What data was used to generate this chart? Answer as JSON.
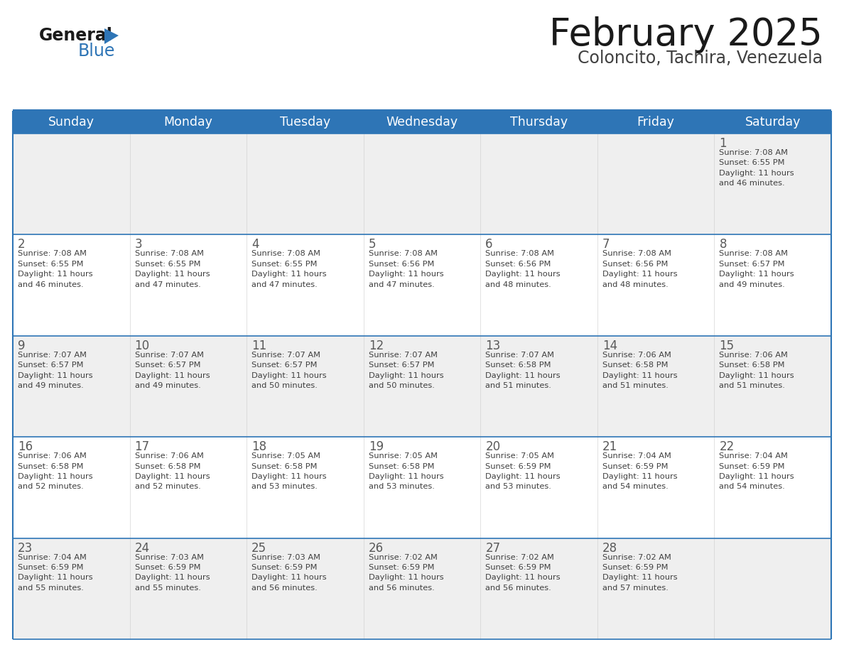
{
  "title": "February 2025",
  "subtitle": "Coloncito, Tachira, Venezuela",
  "header_bg": "#2E75B6",
  "header_text": "#FFFFFF",
  "cell_bg_odd": "#EFEFEF",
  "cell_bg_even": "#FFFFFF",
  "border_color": "#2E75B6",
  "sep_color": "#2E75B6",
  "day_headers": [
    "Sunday",
    "Monday",
    "Tuesday",
    "Wednesday",
    "Thursday",
    "Friday",
    "Saturday"
  ],
  "title_color": "#1a1a1a",
  "subtitle_color": "#404040",
  "day_num_color": "#595959",
  "cell_text_color": "#404040",
  "logo_black": "#1a1a1a",
  "logo_blue": "#2E75B6",
  "weeks": [
    [
      {
        "day": null,
        "info": null
      },
      {
        "day": null,
        "info": null
      },
      {
        "day": null,
        "info": null
      },
      {
        "day": null,
        "info": null
      },
      {
        "day": null,
        "info": null
      },
      {
        "day": null,
        "info": null
      },
      {
        "day": 1,
        "info": "Sunrise: 7:08 AM\nSunset: 6:55 PM\nDaylight: 11 hours\nand 46 minutes."
      }
    ],
    [
      {
        "day": 2,
        "info": "Sunrise: 7:08 AM\nSunset: 6:55 PM\nDaylight: 11 hours\nand 46 minutes."
      },
      {
        "day": 3,
        "info": "Sunrise: 7:08 AM\nSunset: 6:55 PM\nDaylight: 11 hours\nand 47 minutes."
      },
      {
        "day": 4,
        "info": "Sunrise: 7:08 AM\nSunset: 6:55 PM\nDaylight: 11 hours\nand 47 minutes."
      },
      {
        "day": 5,
        "info": "Sunrise: 7:08 AM\nSunset: 6:56 PM\nDaylight: 11 hours\nand 47 minutes."
      },
      {
        "day": 6,
        "info": "Sunrise: 7:08 AM\nSunset: 6:56 PM\nDaylight: 11 hours\nand 48 minutes."
      },
      {
        "day": 7,
        "info": "Sunrise: 7:08 AM\nSunset: 6:56 PM\nDaylight: 11 hours\nand 48 minutes."
      },
      {
        "day": 8,
        "info": "Sunrise: 7:08 AM\nSunset: 6:57 PM\nDaylight: 11 hours\nand 49 minutes."
      }
    ],
    [
      {
        "day": 9,
        "info": "Sunrise: 7:07 AM\nSunset: 6:57 PM\nDaylight: 11 hours\nand 49 minutes."
      },
      {
        "day": 10,
        "info": "Sunrise: 7:07 AM\nSunset: 6:57 PM\nDaylight: 11 hours\nand 49 minutes."
      },
      {
        "day": 11,
        "info": "Sunrise: 7:07 AM\nSunset: 6:57 PM\nDaylight: 11 hours\nand 50 minutes."
      },
      {
        "day": 12,
        "info": "Sunrise: 7:07 AM\nSunset: 6:57 PM\nDaylight: 11 hours\nand 50 minutes."
      },
      {
        "day": 13,
        "info": "Sunrise: 7:07 AM\nSunset: 6:58 PM\nDaylight: 11 hours\nand 51 minutes."
      },
      {
        "day": 14,
        "info": "Sunrise: 7:06 AM\nSunset: 6:58 PM\nDaylight: 11 hours\nand 51 minutes."
      },
      {
        "day": 15,
        "info": "Sunrise: 7:06 AM\nSunset: 6:58 PM\nDaylight: 11 hours\nand 51 minutes."
      }
    ],
    [
      {
        "day": 16,
        "info": "Sunrise: 7:06 AM\nSunset: 6:58 PM\nDaylight: 11 hours\nand 52 minutes."
      },
      {
        "day": 17,
        "info": "Sunrise: 7:06 AM\nSunset: 6:58 PM\nDaylight: 11 hours\nand 52 minutes."
      },
      {
        "day": 18,
        "info": "Sunrise: 7:05 AM\nSunset: 6:58 PM\nDaylight: 11 hours\nand 53 minutes."
      },
      {
        "day": 19,
        "info": "Sunrise: 7:05 AM\nSunset: 6:58 PM\nDaylight: 11 hours\nand 53 minutes."
      },
      {
        "day": 20,
        "info": "Sunrise: 7:05 AM\nSunset: 6:59 PM\nDaylight: 11 hours\nand 53 minutes."
      },
      {
        "day": 21,
        "info": "Sunrise: 7:04 AM\nSunset: 6:59 PM\nDaylight: 11 hours\nand 54 minutes."
      },
      {
        "day": 22,
        "info": "Sunrise: 7:04 AM\nSunset: 6:59 PM\nDaylight: 11 hours\nand 54 minutes."
      }
    ],
    [
      {
        "day": 23,
        "info": "Sunrise: 7:04 AM\nSunset: 6:59 PM\nDaylight: 11 hours\nand 55 minutes."
      },
      {
        "day": 24,
        "info": "Sunrise: 7:03 AM\nSunset: 6:59 PM\nDaylight: 11 hours\nand 55 minutes."
      },
      {
        "day": 25,
        "info": "Sunrise: 7:03 AM\nSunset: 6:59 PM\nDaylight: 11 hours\nand 56 minutes."
      },
      {
        "day": 26,
        "info": "Sunrise: 7:02 AM\nSunset: 6:59 PM\nDaylight: 11 hours\nand 56 minutes."
      },
      {
        "day": 27,
        "info": "Sunrise: 7:02 AM\nSunset: 6:59 PM\nDaylight: 11 hours\nand 56 minutes."
      },
      {
        "day": 28,
        "info": "Sunrise: 7:02 AM\nSunset: 6:59 PM\nDaylight: 11 hours\nand 57 minutes."
      },
      {
        "day": null,
        "info": null
      }
    ]
  ]
}
